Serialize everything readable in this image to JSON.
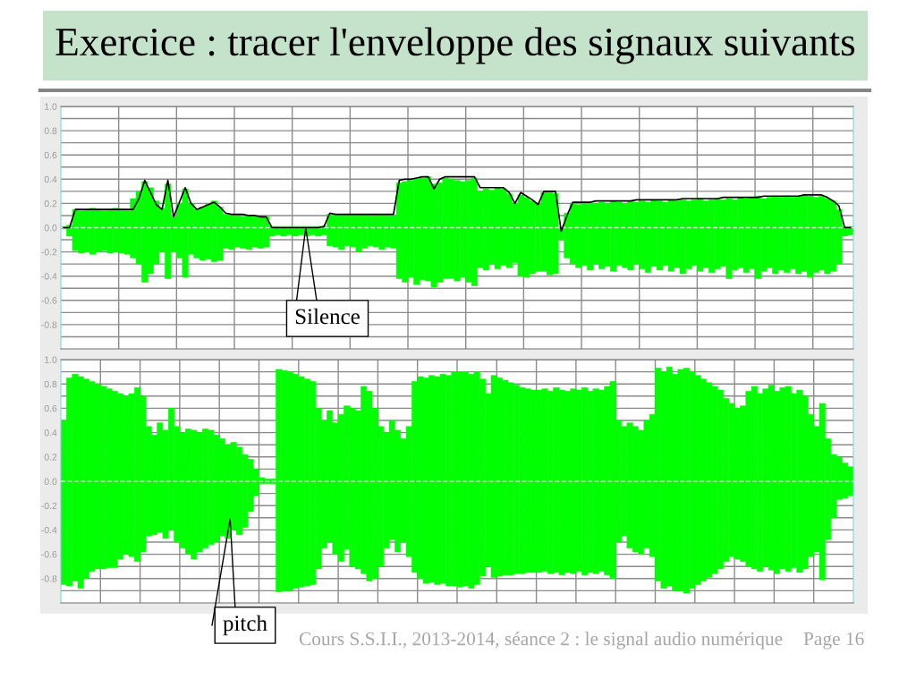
{
  "chart_data": [
    {
      "type": "bar",
      "title": "Exercice : tracer l'enveloppe des signaux suivants",
      "categories": [
        null,
        null,
        null,
        null,
        null,
        null,
        null,
        null,
        null,
        null,
        null,
        null,
        null,
        null,
        null,
        null,
        null,
        null,
        null,
        null,
        null,
        null,
        null,
        null,
        null,
        null,
        null,
        null,
        null,
        null,
        null,
        null,
        null,
        null,
        null,
        null,
        null,
        null,
        null,
        null,
        null,
        null,
        null,
        null,
        null,
        null,
        null,
        null,
        null,
        null,
        null,
        null,
        null,
        null,
        null,
        null,
        null,
        null,
        null,
        null,
        null,
        null,
        null,
        null,
        null,
        null,
        null,
        null,
        null,
        null,
        null,
        null,
        null,
        null,
        null,
        null,
        null,
        null,
        null,
        null,
        null,
        null,
        null,
        null,
        null,
        null,
        null,
        null,
        null,
        null,
        null,
        null,
        null,
        null,
        null,
        null,
        null,
        null,
        null,
        null,
        null,
        null,
        null,
        null,
        null,
        null,
        null,
        null,
        null,
        null,
        null,
        null,
        null,
        null,
        null,
        null,
        null,
        null,
        null,
        null,
        null,
        null,
        null,
        null,
        null,
        null,
        null,
        null,
        null,
        null,
        null,
        null,
        null,
        null,
        null,
        null,
        null
      ],
      "series": [
        {
          "color": "#00ff00",
          "base": [
            -0.01,
            -0.07,
            -0.19,
            -0.21,
            -0.2,
            -0.22,
            -0.2,
            -0.19,
            -0.21,
            -0.2,
            -0.21,
            -0.22,
            -0.25,
            -0.3,
            -0.45,
            -0.38,
            -0.3,
            -0.2,
            -0.42,
            -0.2,
            -0.25,
            -0.41,
            -0.22,
            -0.25,
            -0.27,
            -0.26,
            -0.28,
            -0.27,
            -0.17,
            -0.18,
            -0.16,
            -0.17,
            -0.18,
            -0.16,
            -0.17,
            -0.16,
            -0.07,
            -0.06,
            -0.07,
            -0.06,
            -0.07,
            -0.06,
            -0.07,
            -0.06,
            -0.07,
            -0.06,
            -0.15,
            -0.16,
            -0.18,
            -0.15,
            -0.16,
            -0.2,
            -0.17,
            -0.15,
            -0.16,
            -0.18,
            -0.16,
            -0.17,
            -0.42,
            -0.45,
            -0.41,
            -0.47,
            -0.43,
            -0.44,
            -0.49,
            -0.45,
            -0.42,
            -0.42,
            -0.44,
            -0.41,
            -0.45,
            -0.48,
            -0.33,
            -0.35,
            -0.3,
            -0.34,
            -0.31,
            -0.33,
            -0.29,
            -0.4,
            -0.41,
            -0.38,
            -0.36,
            -0.36,
            -0.39,
            -0.38,
            -0.1,
            -0.25,
            -0.3,
            -0.33,
            -0.31,
            -0.35,
            -0.3,
            -0.34,
            -0.32,
            -0.36,
            -0.31,
            -0.33,
            -0.35,
            -0.3,
            -0.34,
            -0.37,
            -0.32,
            -0.35,
            -0.31,
            -0.36,
            -0.33,
            -0.38,
            -0.34,
            -0.31,
            -0.36,
            -0.33,
            -0.37,
            -0.34,
            -0.32,
            -0.42,
            -0.35,
            -0.33,
            -0.37,
            -0.34,
            -0.42,
            -0.36,
            -0.33,
            -0.38,
            -0.35,
            -0.37,
            -0.34,
            -0.38,
            -0.36,
            -0.41,
            -0.37,
            -0.35,
            -0.38,
            -0.36,
            -0.3,
            -0.07,
            -0.06
          ],
          "values": [
            0.02,
            0.09,
            0.34,
            0.35,
            0.35,
            0.38,
            0.35,
            0.33,
            0.36,
            0.36,
            0.36,
            0.36,
            0.49,
            0.6,
            0.83,
            0.71,
            0.52,
            0.36,
            0.78,
            0.29,
            0.45,
            0.73,
            0.42,
            0.4,
            0.44,
            0.46,
            0.5,
            0.44,
            0.28,
            0.28,
            0.26,
            0.26,
            0.28,
            0.25,
            0.26,
            0.25,
            0.08,
            0.07,
            0.08,
            0.07,
            0.08,
            0.07,
            0.08,
            0.07,
            0.08,
            0.07,
            0.26,
            0.26,
            0.29,
            0.25,
            0.27,
            0.3,
            0.28,
            0.25,
            0.26,
            0.29,
            0.26,
            0.27,
            0.79,
            0.83,
            0.8,
            0.87,
            0.84,
            0.86,
            0.85,
            0.82,
            0.83,
            0.82,
            0.83,
            0.79,
            0.84,
            0.89,
            0.63,
            0.67,
            0.61,
            0.67,
            0.63,
            0.61,
            0.49,
            0.67,
            0.66,
            0.6,
            0.56,
            0.65,
            0.68,
            0.66,
            0.1,
            0.37,
            0.5,
            0.52,
            0.51,
            0.56,
            0.5,
            0.55,
            0.52,
            0.58,
            0.52,
            0.53,
            0.57,
            0.51,
            0.56,
            0.58,
            0.55,
            0.57,
            0.52,
            0.59,
            0.55,
            0.61,
            0.56,
            0.54,
            0.6,
            0.55,
            0.6,
            0.58,
            0.55,
            0.66,
            0.58,
            0.58,
            0.61,
            0.59,
            0.68,
            0.6,
            0.58,
            0.64,
            0.6,
            0.63,
            0.59,
            0.64,
            0.63,
            0.67,
            0.62,
            0.61,
            0.62,
            0.58,
            0.45,
            0.08,
            0.07
          ]
        },
        {
          "type": "line",
          "color": "#000000",
          "values": [
            0,
            0,
            0.15,
            0.15,
            0.15,
            0.15,
            0.15,
            0.15,
            0.15,
            0.15,
            0.15,
            0.15,
            0.15,
            0.24,
            0.39,
            0.29,
            0.19,
            0.15,
            0.39,
            0.09,
            0.21,
            0.33,
            0.2,
            0.15,
            0.17,
            0.19,
            0.21,
            0.17,
            0.12,
            0.11,
            0.11,
            0.11,
            0.1,
            0.1,
            0.09,
            0.09,
            0,
            0,
            0,
            0,
            0,
            0,
            0,
            0,
            0,
            0.01,
            0.12,
            0.11,
            0.11,
            0.11,
            0.11,
            0.11,
            0.11,
            0.11,
            0.11,
            0.11,
            0.11,
            0.11,
            0.39,
            0.4,
            0.4,
            0.41,
            0.42,
            0.42,
            0.32,
            0.4,
            0.42,
            0.42,
            0.42,
            0.42,
            0.42,
            0.42,
            0.33,
            0.33,
            0.33,
            0.33,
            0.33,
            0.29,
            0.2,
            0.29,
            0.26,
            0.23,
            0.19,
            0.3,
            0.3,
            0.3,
            -0.03,
            0.1,
            0.21,
            0.21,
            0.21,
            0.21,
            0.22,
            0.22,
            0.22,
            0.22,
            0.22,
            0.22,
            0.22,
            0.23,
            0.23,
            0.23,
            0.23,
            0.23,
            0.23,
            0.23,
            0.23,
            0.24,
            0.24,
            0.24,
            0.24,
            0.24,
            0.24,
            0.24,
            0.25,
            0.25,
            0.25,
            0.25,
            0.25,
            0.25,
            0.25,
            0.26,
            0.26,
            0.26,
            0.26,
            0.26,
            0.26,
            0.26,
            0.27,
            0.27,
            0.27,
            0.27,
            0.25,
            0.22,
            0.18,
            0,
            0
          ]
        }
      ],
      "ylim": [
        -1,
        1
      ],
      "yticks": [
        {
          "value": 1,
          "label": "1.0"
        },
        {
          "value": 0.9,
          "label": null
        },
        {
          "value": 0.8,
          "label": "0.8"
        },
        {
          "value": 0.7,
          "label": null
        },
        {
          "value": 0.6,
          "label": "0.6"
        },
        {
          "value": 0.5,
          "label": null
        },
        {
          "value": 0.4,
          "label": "0.4"
        },
        {
          "value": 0.3,
          "label": null
        },
        {
          "value": 0.2,
          "label": "0.2"
        },
        {
          "value": 0.1,
          "label": null
        },
        {
          "value": 0,
          "label": "0.0"
        },
        {
          "value": -0.1,
          "label": null
        },
        {
          "value": -0.2,
          "label": "-0.2"
        },
        {
          "value": -0.3,
          "label": null
        },
        {
          "value": -0.4,
          "label": "-0.4"
        },
        {
          "value": -0.5,
          "label": null
        },
        {
          "value": -0.6,
          "label": "-0.6"
        },
        {
          "value": -0.7,
          "label": null
        },
        {
          "value": -0.8,
          "label": "-0.8"
        },
        {
          "value": -0.9,
          "label": null
        }
      ],
      "grid": true,
      "tick_labels": "y",
      "ref_lines": [
        {
          "axis": "y",
          "value": 0,
          "color": "#c8f5c8",
          "line_style": "dashed"
        }
      ],
      "annotations": [
        "Silence"
      ]
    },
    {
      "type": "bar",
      "categories": [
        null,
        null,
        null,
        null,
        null,
        null,
        null,
        null,
        null,
        null,
        null,
        null,
        null,
        null,
        null,
        null,
        null,
        null,
        null,
        null,
        null,
        null,
        null,
        null,
        null,
        null,
        null,
        null,
        null,
        null,
        null,
        null,
        null,
        null,
        null,
        null,
        null,
        null,
        null,
        null,
        null,
        null,
        null,
        null,
        null,
        null,
        null,
        null,
        null,
        null,
        null,
        null,
        null,
        null,
        null,
        null,
        null,
        null,
        null,
        null,
        null,
        null,
        null,
        null,
        null,
        null,
        null,
        null,
        null,
        null,
        null,
        null,
        null,
        null,
        null,
        null,
        null,
        null,
        null,
        null,
        null,
        null,
        null,
        null,
        null,
        null,
        null,
        null,
        null,
        null,
        null,
        null,
        null,
        null,
        null,
        null,
        null,
        null,
        null,
        null,
        null,
        null,
        null,
        null,
        null,
        null,
        null,
        null,
        null,
        null,
        null,
        null,
        null,
        null,
        null,
        null,
        null,
        null,
        null,
        null,
        null,
        null,
        null,
        null,
        null,
        null,
        null,
        null,
        null,
        null,
        null,
        null,
        null,
        null,
        null,
        null,
        null,
        null,
        null,
        null
      ],
      "series": [
        {
          "color": "#00ff00",
          "base": [
            -0.85,
            -0.86,
            -0.82,
            -0.88,
            -0.8,
            -0.74,
            -0.72,
            -0.72,
            -0.71,
            -0.71,
            -0.64,
            -0.6,
            -0.62,
            -0.66,
            -0.58,
            -0.45,
            -0.44,
            -0.42,
            -0.47,
            -0.4,
            -0.5,
            -0.55,
            -0.6,
            -0.64,
            -0.58,
            -0.55,
            -0.52,
            -0.5,
            -0.45,
            -0.47,
            -0.4,
            -0.44,
            -0.38,
            -0.25,
            -0.12,
            -0.02,
            -0.02,
            -0.02,
            -0.91,
            -0.9,
            -0.9,
            -0.88,
            -0.87,
            -0.86,
            -0.85,
            -0.72,
            -0.55,
            -0.5,
            -0.6,
            -0.66,
            -0.56,
            -0.7,
            -0.72,
            -0.76,
            -0.82,
            -0.8,
            -0.7,
            -0.55,
            -0.48,
            -0.58,
            -0.5,
            -0.62,
            -0.75,
            -0.8,
            -0.84,
            -0.83,
            -0.85,
            -0.84,
            -0.86,
            -0.86,
            -0.87,
            -0.86,
            -0.88,
            -0.85,
            -0.78,
            -0.7,
            -0.79,
            -0.78,
            -0.77,
            -0.77,
            -0.76,
            -0.76,
            -0.75,
            -0.75,
            -0.75,
            -0.74,
            -0.76,
            -0.75,
            -0.77,
            -0.75,
            -0.76,
            -0.74,
            -0.77,
            -0.75,
            -0.76,
            -0.74,
            -0.77,
            -0.8,
            -0.5,
            -0.45,
            -0.55,
            -0.58,
            -0.6,
            -0.55,
            -0.62,
            -0.82,
            -0.88,
            -0.86,
            -0.9,
            -0.9,
            -0.92,
            -0.88,
            -0.85,
            -0.82,
            -0.79,
            -0.76,
            -0.72,
            -0.66,
            -0.62,
            -0.64,
            -0.66,
            -0.7,
            -0.72,
            -0.74,
            -0.7,
            -0.73,
            -0.76,
            -0.72,
            -0.74,
            -0.71,
            -0.75,
            -0.72,
            -0.62,
            -0.58,
            -0.81,
            -0.48,
            -0.3,
            -0.15,
            -0.14,
            -0.12
          ],
          "values": [
            1.35,
            1.71,
            1.7,
            1.74,
            1.64,
            1.56,
            1.52,
            1.5,
            1.47,
            1.45,
            1.36,
            1.3,
            1.34,
            1.43,
            1.28,
            0.9,
            0.82,
            0.9,
            0.89,
            1.0,
            0.95,
            0.95,
            1.03,
            1.06,
            0.98,
            0.98,
            0.94,
            0.88,
            0.8,
            0.77,
            0.72,
            0.72,
            0.6,
            0.43,
            0.22,
            0.05,
            0.04,
            0.04,
            1.83,
            1.81,
            1.8,
            1.76,
            1.73,
            1.7,
            1.67,
            1.32,
            1.05,
            1.08,
            1.08,
            1.21,
            1.18,
            1.3,
            1.3,
            1.54,
            1.56,
            1.4,
            1.15,
            0.95,
            0.98,
            1.0,
            0.85,
            1.07,
            1.57,
            1.66,
            1.69,
            1.7,
            1.71,
            1.72,
            1.73,
            1.76,
            1.77,
            1.76,
            1.76,
            1.75,
            1.62,
            1.42,
            1.66,
            1.63,
            1.6,
            1.58,
            1.55,
            1.53,
            1.51,
            1.5,
            1.5,
            1.5,
            1.5,
            1.52,
            1.52,
            1.49,
            1.52,
            1.49,
            1.54,
            1.49,
            1.52,
            1.49,
            1.55,
            1.62,
            1.0,
            0.9,
            1.03,
            1.03,
            1.02,
            1.05,
            1.17,
            1.75,
            1.78,
            1.8,
            1.78,
            1.82,
            1.85,
            1.78,
            1.72,
            1.66,
            1.6,
            1.54,
            1.47,
            1.34,
            1.26,
            1.24,
            1.28,
            1.44,
            1.5,
            1.46,
            1.46,
            1.52,
            1.5,
            1.49,
            1.52,
            1.43,
            1.5,
            1.42,
            1.17,
            1.03,
            1.45,
            0.83,
            0.52,
            0.35,
            0.29,
            0.24
          ]
        }
      ],
      "ylim": [
        -1,
        1
      ],
      "yticks": [
        {
          "value": 1,
          "label": "1.0"
        },
        {
          "value": 0.9,
          "label": null
        },
        {
          "value": 0.8,
          "label": "0.8"
        },
        {
          "value": 0.7,
          "label": null
        },
        {
          "value": 0.6,
          "label": "0.6"
        },
        {
          "value": 0.5,
          "label": null
        },
        {
          "value": 0.4,
          "label": "0.4"
        },
        {
          "value": 0.3,
          "label": null
        },
        {
          "value": 0.2,
          "label": "0.2"
        },
        {
          "value": 0.1,
          "label": null
        },
        {
          "value": 0,
          "label": "0.0"
        },
        {
          "value": -0.1,
          "label": null
        },
        {
          "value": -0.2,
          "label": "-0.2"
        },
        {
          "value": -0.3,
          "label": null
        },
        {
          "value": -0.4,
          "label": "-0.4"
        },
        {
          "value": -0.5,
          "label": null
        },
        {
          "value": -0.6,
          "label": "-0.6"
        },
        {
          "value": -0.7,
          "label": null
        },
        {
          "value": -0.8,
          "label": "-0.8"
        },
        {
          "value": -0.9,
          "label": null
        }
      ],
      "grid": true,
      "tick_labels": "y",
      "ref_lines": [
        {
          "axis": "y",
          "value": 0,
          "color": "#c8f5c8",
          "line_style": "dashed"
        }
      ],
      "annotations": [
        "pitch",
        "Cours S.S.I.I., 2013-2014, séance 2 : le signal audio numérique",
        "Page 16"
      ]
    }
  ]
}
